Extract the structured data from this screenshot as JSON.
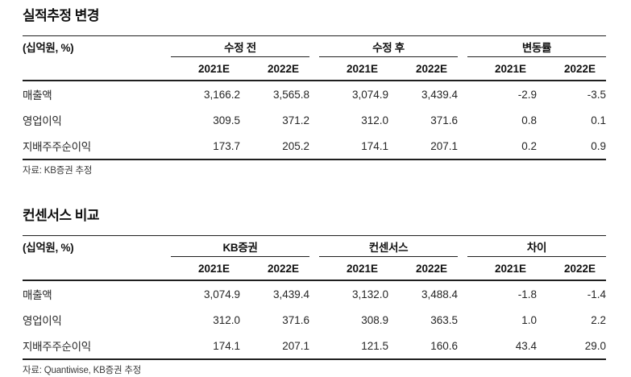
{
  "tables": [
    {
      "title": "실적추정 변경",
      "unit_label": "(십억원, %)",
      "groups": [
        {
          "label": "수정 전",
          "cols": [
            "2021E",
            "2022E"
          ]
        },
        {
          "label": "수정 후",
          "cols": [
            "2021E",
            "2022E"
          ]
        },
        {
          "label": "변동률",
          "cols": [
            "2021E",
            "2022E"
          ]
        }
      ],
      "rows": [
        {
          "label": "매출액",
          "values": [
            "3,166.2",
            "3,565.8",
            "3,074.9",
            "3,439.4",
            "-2.9",
            "-3.5"
          ]
        },
        {
          "label": "영업이익",
          "values": [
            "309.5",
            "371.2",
            "312.0",
            "371.6",
            "0.8",
            "0.1"
          ]
        },
        {
          "label": "지배주주순이익",
          "values": [
            "173.7",
            "205.2",
            "174.1",
            "207.1",
            "0.2",
            "0.9"
          ]
        }
      ],
      "source": "자료: KB증권 추정"
    },
    {
      "title": "컨센서스 비교",
      "unit_label": "(십억원, %)",
      "groups": [
        {
          "label": "KB증권",
          "cols": [
            "2021E",
            "2022E"
          ]
        },
        {
          "label": "컨센서스",
          "cols": [
            "2021E",
            "2022E"
          ]
        },
        {
          "label": "차이",
          "cols": [
            "2021E",
            "2022E"
          ]
        }
      ],
      "rows": [
        {
          "label": "매출액",
          "values": [
            "3,074.9",
            "3,439.4",
            "3,132.0",
            "3,488.4",
            "-1.8",
            "-1.4"
          ]
        },
        {
          "label": "영업이익",
          "values": [
            "312.0",
            "371.6",
            "308.9",
            "363.5",
            "1.0",
            "2.2"
          ]
        },
        {
          "label": "지배주주순이익",
          "values": [
            "174.1",
            "207.1",
            "121.5",
            "160.6",
            "43.4",
            "29.0"
          ]
        }
      ],
      "source": "자료: Quantiwise, KB증권 추정"
    }
  ]
}
